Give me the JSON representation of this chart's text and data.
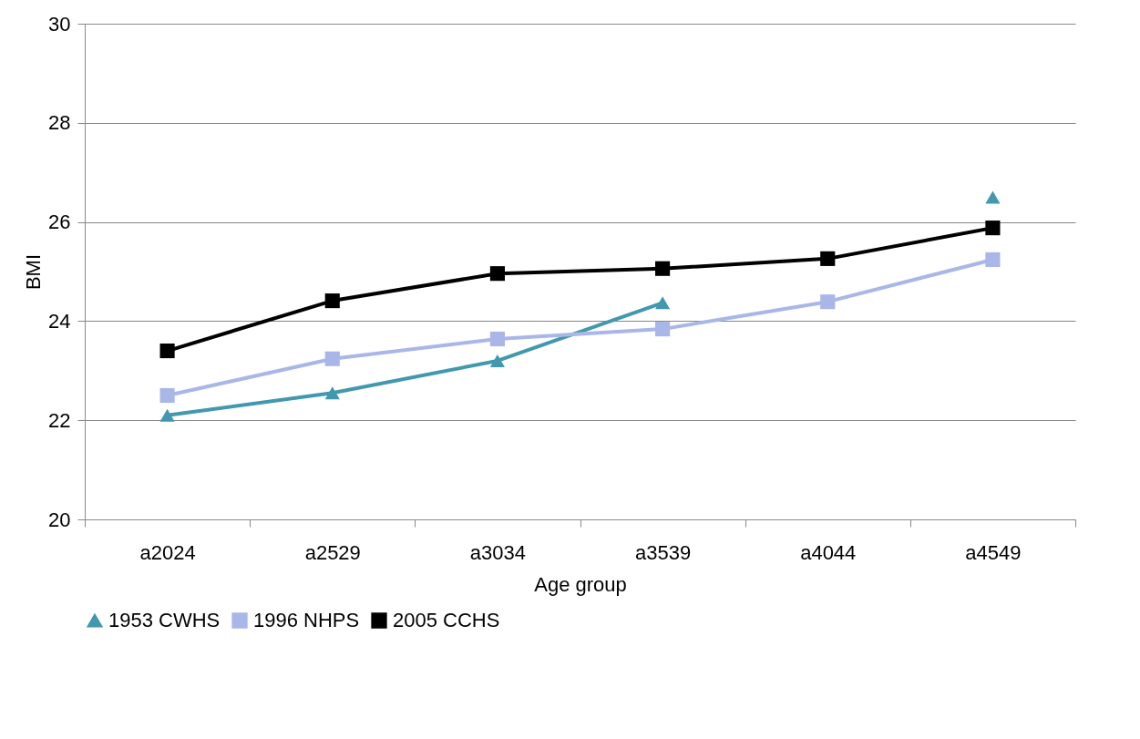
{
  "chart_data": {
    "type": "line",
    "xlabel": "Age group",
    "ylabel": "BMI",
    "categories": [
      "a2024",
      "a2529",
      "a3034",
      "a3539",
      "a4044",
      "a4549"
    ],
    "ylim": [
      20,
      30
    ],
    "yticks": [
      20,
      22,
      24,
      26,
      28,
      30
    ],
    "grid": "y",
    "legend": "bottom",
    "line_style": "solid",
    "series": [
      {
        "name": "1953 CWHS",
        "color": "#4198af",
        "marker": "triangle",
        "values": [
          22.1,
          22.55,
          23.2,
          24.37,
          null,
          26.5
        ]
      },
      {
        "name": "1996 NHPS",
        "color": "#a9b6e8",
        "marker": "square",
        "values": [
          22.5,
          23.24,
          23.64,
          23.84,
          24.39,
          25.24
        ]
      },
      {
        "name": "2005 CCHS",
        "color": "#000000",
        "marker": "square",
        "values": [
          23.4,
          24.41,
          24.96,
          25.06,
          25.26,
          25.88
        ]
      }
    ]
  }
}
